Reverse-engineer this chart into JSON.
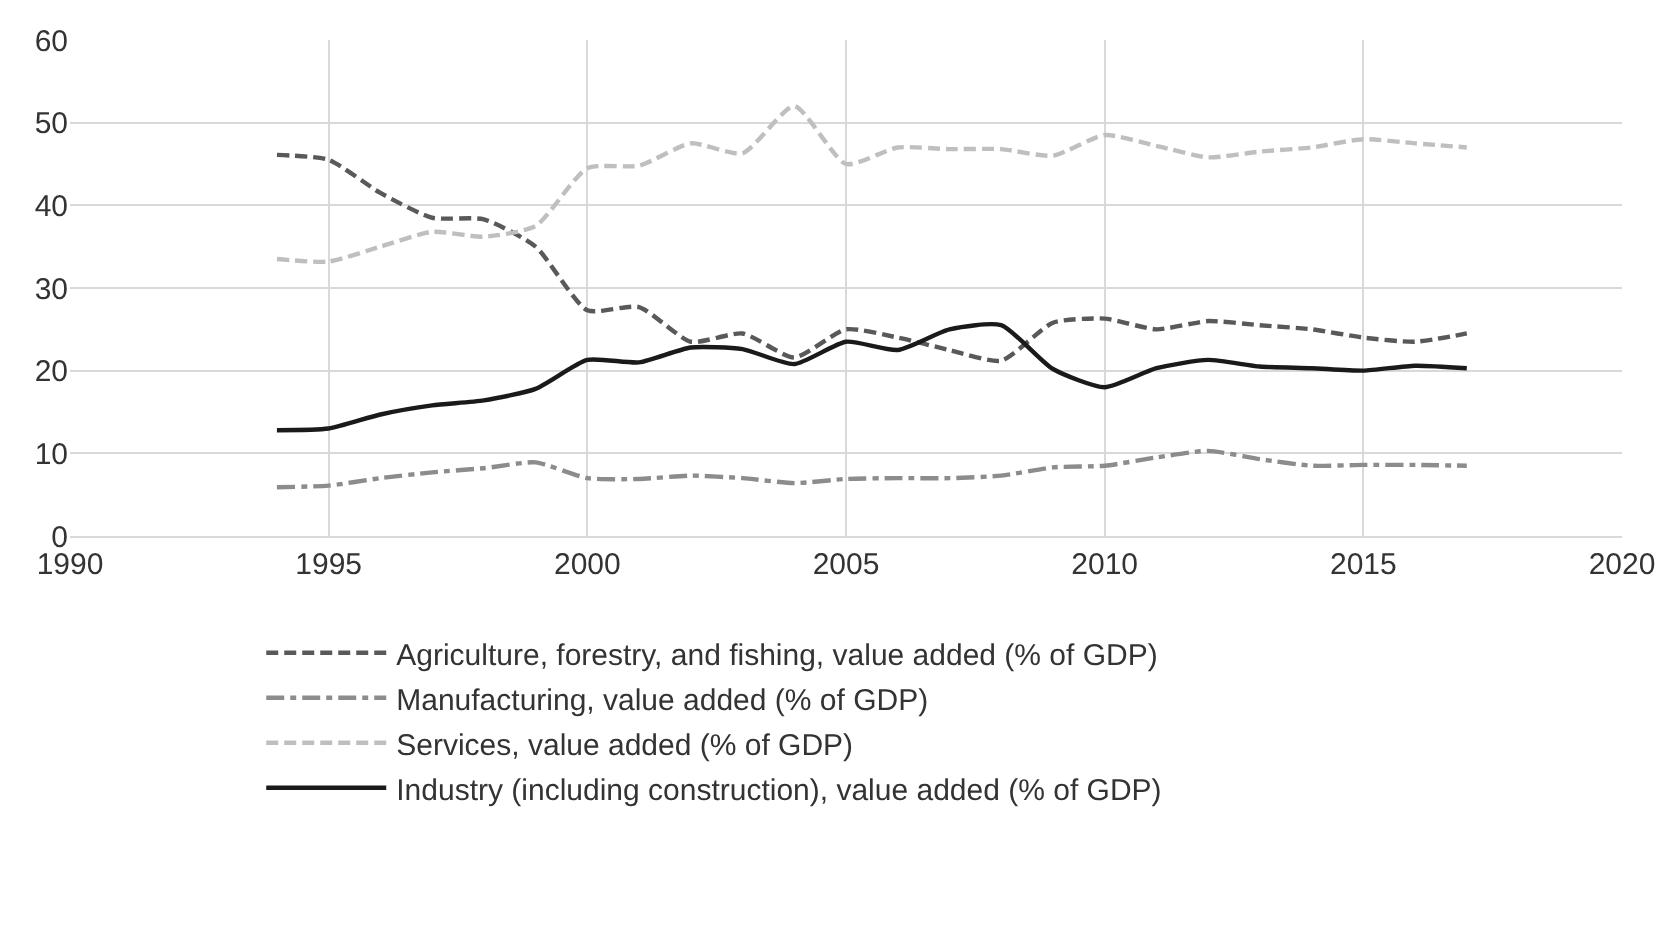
{
  "chart_data": {
    "type": "line",
    "x": [
      1994,
      1995,
      1996,
      1997,
      1998,
      1999,
      2000,
      2001,
      2002,
      2003,
      2004,
      2005,
      2006,
      2007,
      2008,
      2009,
      2010,
      2011,
      2012,
      2013,
      2014,
      2015,
      2016,
      2017
    ],
    "series": [
      {
        "name": "Agriculture, forestry, and fishing, value added (% of GDP)",
        "color": "#595959",
        "line_style": "dashed",
        "values": [
          46.1,
          45.5,
          41.5,
          38.5,
          38.3,
          35.0,
          27.3,
          27.7,
          23.5,
          24.5,
          21.6,
          25.0,
          24.0,
          22.5,
          21.2,
          25.8,
          26.3,
          25.0,
          26.0,
          25.5,
          25.0,
          24.0,
          23.5,
          24.5
        ]
      },
      {
        "name": "Manufacturing, value added (% of GDP)",
        "color": "#8c8c8c",
        "line_style": "dashdot",
        "values": [
          5.9,
          6.1,
          7.0,
          7.7,
          8.2,
          8.9,
          7.0,
          6.9,
          7.3,
          7.0,
          6.4,
          6.9,
          7.0,
          7.0,
          7.3,
          8.3,
          8.5,
          9.5,
          10.3,
          9.3,
          8.5,
          8.6,
          8.6,
          8.5
        ]
      },
      {
        "name": "Services, value added (% of GDP)",
        "color": "#bfbfbf",
        "line_style": "dashed",
        "values": [
          33.5,
          33.2,
          35.0,
          36.8,
          36.2,
          37.5,
          44.5,
          44.8,
          47.5,
          46.3,
          52.0,
          45.0,
          47.0,
          46.8,
          46.8,
          46.0,
          48.5,
          47.2,
          45.8,
          46.5,
          47.0,
          48.0,
          47.5,
          47.0
        ]
      },
      {
        "name": "Industry (including construction), value added (% of GDP)",
        "color": "#1a1a1a",
        "line_style": "solid",
        "values": [
          12.8,
          13.0,
          14.7,
          15.8,
          16.4,
          17.8,
          21.3,
          21.0,
          22.8,
          22.6,
          20.8,
          23.5,
          22.5,
          25.0,
          25.5,
          20.2,
          18.0,
          20.3,
          21.3,
          20.5,
          20.3,
          20.0,
          20.6,
          20.3
        ]
      }
    ],
    "xlim": [
      1990,
      2020
    ],
    "xticks": [
      1990,
      1995,
      2000,
      2005,
      2010,
      2015,
      2020
    ],
    "ylim": [
      0,
      60
    ],
    "yticks": [
      0,
      10,
      20,
      30,
      40,
      50,
      60
    ],
    "grid": true,
    "legend": "bottom"
  }
}
